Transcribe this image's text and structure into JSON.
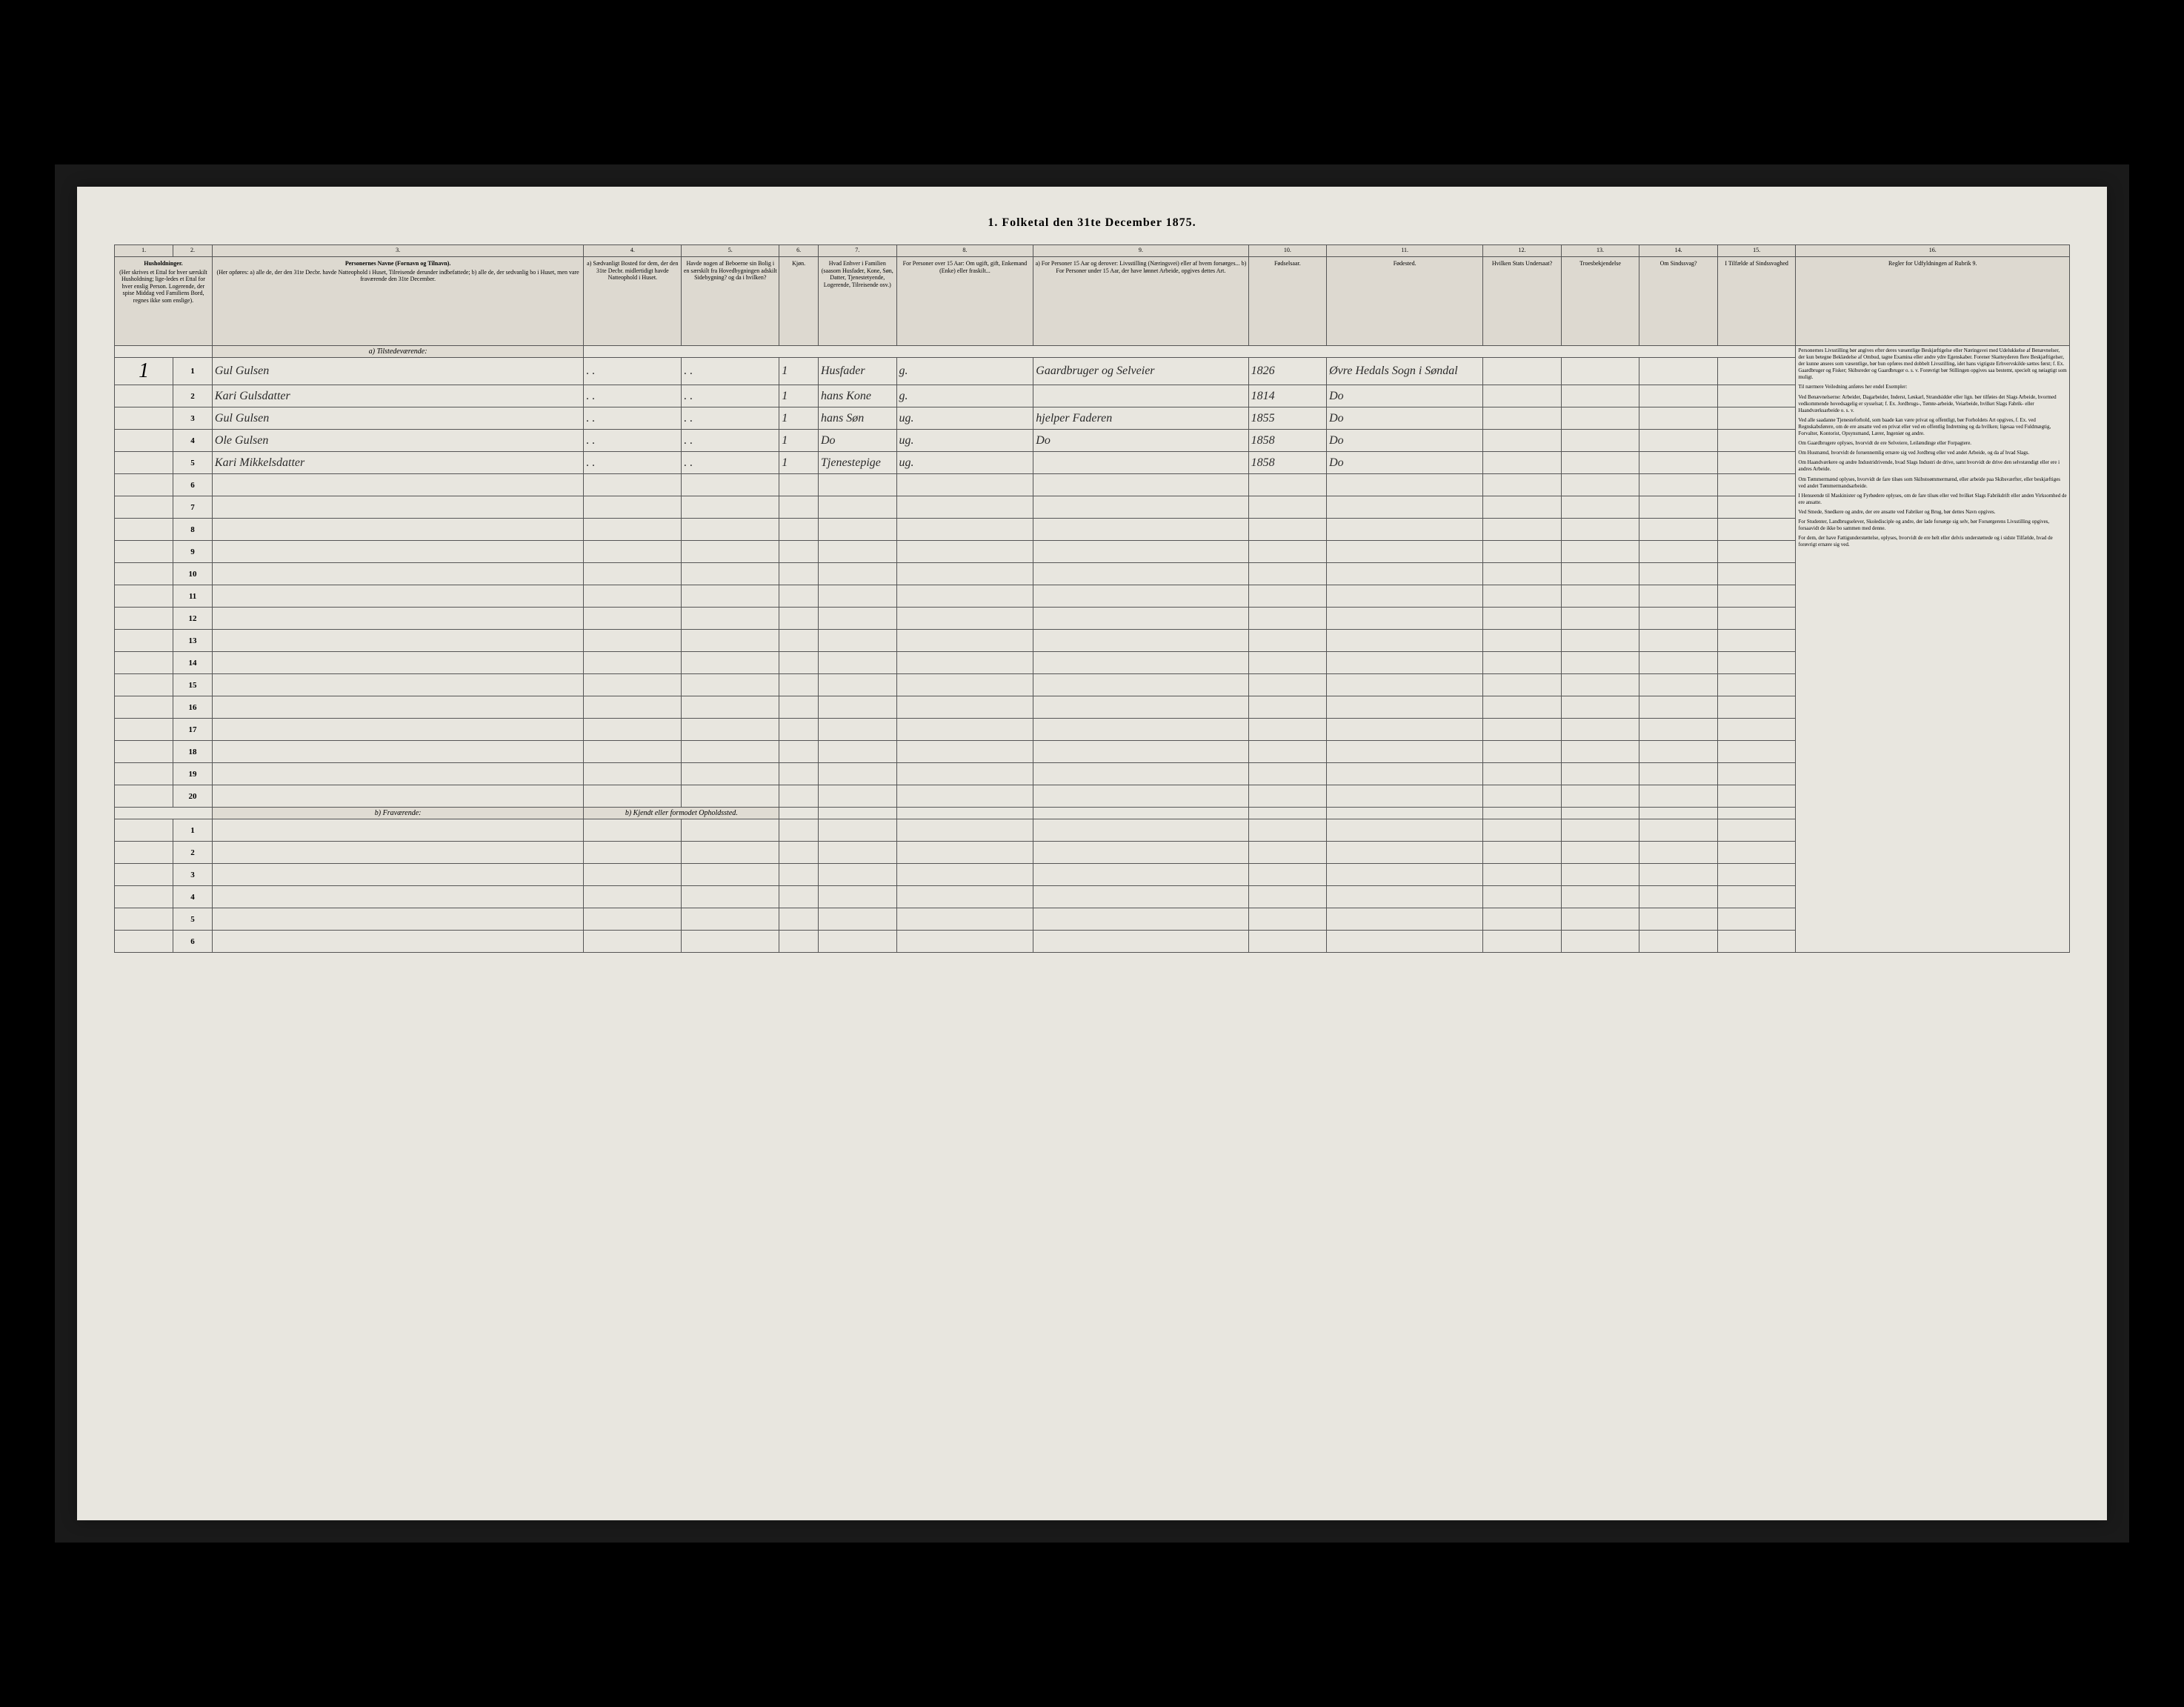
{
  "title": "1. Folketal den 31te December 1875.",
  "columns": {
    "c1": "1.",
    "c2": "2.",
    "c3": "3.",
    "c4": "4.",
    "c5": "5.",
    "c6": "6.",
    "c7": "7.",
    "c8": "8.",
    "c9": "9.",
    "c10": "10.",
    "c11": "11.",
    "c12": "12.",
    "c13": "13.",
    "c14": "14.",
    "c15": "15.",
    "c16": "16."
  },
  "headers": {
    "h1": "Husholdninger.",
    "h1_sub": "(Her skrives et Ettal for hver særskilt Husholdning; lige-ledes et Ettal for hver enslig Person. Logerende, der spise Middag ved Familiens Bord, regnes ikke som enslige).",
    "h3": "Personernes Navne (Fornavn og Tilnavn).",
    "h3_sub": "(Her opføres:\na) alle de, der den 31te Decbr. havde Natteophold i Huset, Tilreisende derunder indbefattede;\nb) alle de, der sedvanlig bo i Huset, men vare fraværende den 31te December.",
    "h4": "a) Sædvanligt Bosted for dem, der den 31te Decbr. midlertidigt havde Natteophold i Huset.",
    "h5": "Havde nogen af Beboerne sin Bolig i en særskilt fra Hovedbygningen adskilt Sidebygning? og da i hvilken?",
    "h6": "Kjøn.",
    "h7": "Hvad Enhver i Familien (saasom Husfader, Kone, Søn, Datter, Tjenestetyende, Logerende, Tilreisende osv.)",
    "h8": "For Personer over 15 Aar: Om ugift, gift, Enkemand (Enke) eller fraskilt...",
    "h9": "a) For Personer 15 Aar og derover: Livsstilling (Næringsvei) eller af hvem forsørges...\nb) For Personer under 15 Aar, der have lønnet Arbeide, opgives dettes Art.",
    "h10": "Fødselsaar.",
    "h11": "Fødested.",
    "h12": "Hvilken Stats Undersaat?",
    "h13": "Troesbekjendelse",
    "h14": "Om Sindssvag?",
    "h15": "I Tilfælde af Sindssvaghed",
    "h16": "Regler for Udfyldningen af Rubrik 9."
  },
  "section_a": "a) Tilstedeværende:",
  "section_b": "b) Fraværende:",
  "section_b_col4": "b) Kjendt eller formodet Opholdssted.",
  "household_num": "1",
  "rows": [
    {
      "n": "1",
      "name": "Gul Gulsen",
      "c6": "1",
      "c7": "Husfader",
      "c8": "g.",
      "c9": "Gaardbruger og Selveier",
      "c10": "1826",
      "c11": "Øvre Hedals Sogn i Søndal"
    },
    {
      "n": "2",
      "name": "Kari Gulsdatter",
      "c6": "1",
      "c7": "hans Kone",
      "c8": "g.",
      "c9": "",
      "c10": "1814",
      "c11": "Do"
    },
    {
      "n": "3",
      "name": "Gul Gulsen",
      "c6": "1",
      "c7": "hans Søn",
      "c8": "ug.",
      "c9": "hjelper Faderen",
      "c10": "1855",
      "c11": "Do"
    },
    {
      "n": "4",
      "name": "Ole Gulsen",
      "c6": "1",
      "c7": "Do",
      "c8": "ug.",
      "c9": "Do",
      "c10": "1858",
      "c11": "Do"
    },
    {
      "n": "5",
      "name": "Kari Mikkelsdatter",
      "c6": "1",
      "c7": "Tjenestepige",
      "c8": "ug.",
      "c9": "",
      "c10": "1858",
      "c11": "Do"
    }
  ],
  "empty_rows_a": [
    "6",
    "7",
    "8",
    "9",
    "10",
    "11",
    "12",
    "13",
    "14",
    "15",
    "16",
    "17",
    "18",
    "19",
    "20"
  ],
  "empty_rows_b": [
    "1",
    "2",
    "3",
    "4",
    "5",
    "6"
  ],
  "instructions": {
    "p1": "Personernes Livsstilling bør angives efter deres væsentlige Beskjæftigelse eller Næringsvei med Udelukkelse af Benævnelser, der kun betegne Beklædelse af Ombud, tagne Examina eller andre ydre Egenskaber. Forener Skatteyderen flere Beskjæftigelser, der kunne ansees som væsentlige, bør hun opføres med dobbelt Livsstilling, idet hans vigtigste Erhvervskilde sættes først; f. Ex. Gaardbruger og Fisker; Skibsreder og Gaardbruger o. s. v. Forøvrigt bør Stillingen opgives saa bestemt, specielt og nøiagtigt som muligt.",
    "p2": "Til nærmere Veiledning anføres her endel Exempler:",
    "p3": "Ved Benævnelserne: Arbeider, Dagarbeider, Inderst, Løskarl, Strandsidder eller lign. bør tilføies det Slags Arbeide, hvormed vedkommende hovedsagelig er sysselsat; f. Ex. Jordbrugs-, Tømte-arbeide, Veiarbeide, hvilket Slags Fabrik- eller Haandværksarbeide o. s. v.",
    "p4": "Ved alle saadanne Tjenesteforhold, som baade kan være privat og offentligt, bør Forholdets Art opgives, f. Ex. ved Regnskabsførere, om de ere ansatte ved en privat eller ved en offentlig Indretning og da hvilken; ligesaa ved Fuldmægtig, Forvalter, Kontorist, Opsynsmand, Lærer, Ingeniør og andre.",
    "p5": "Om Gaardbrugere oplyses, hvorvidt de ere Selveiere, Leilændinge eller Forpagtere.",
    "p6": "Om Husmænd, hvorvidt de foruennemlig ernære sig ved Jordbrug eller ved andet Arbeide, og da af hvad Slags.",
    "p7": "Om Haandværkere og andre Industridrivende, hvad Slags Industri de drive, samt hvorvidt de drive den selvstændigt eller ere i andres Arbeide.",
    "p8": "Om Tømmermænd oplyses, hvorvidt de fare tilsøs som Skibstoømmermænd, eller arbeide paa Skibsværfter, eller beskjæftiges ved andet Tømmermandsarbeide.",
    "p9": "I Henseende til Maskinister og Fyrbødere oplyses, om de fare tilsøs eller ved hvilket Slags Fabrikdrift eller anden Virksomhed de ere ansatte.",
    "p10": "Ved Smede, Snedkere og andre, der ere ansatte ved Fabriker og Brug, bør dettes Navn opgives.",
    "p11": "For Studenter, Landbrugselever, Skoledisciple og andre, der lade forsørge sig selv, bør Forsørgerens Livsstilling opgives, forsaavidt de ikke bo sammen med denne.",
    "p12": "For dem, der have Fattigunderstøttelse, oplyses, hvorvidt de ere helt eller delvis understøttede og i sidste Tilfælde, hvad de forøvrigt ernære sig ved."
  }
}
